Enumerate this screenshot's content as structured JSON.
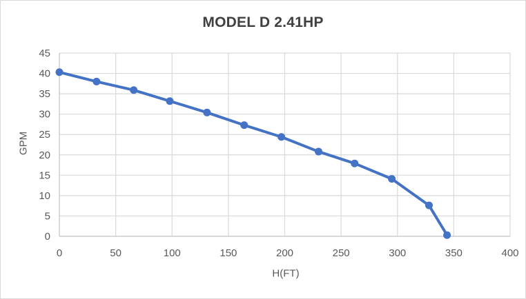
{
  "chart_data": {
    "type": "line",
    "title": "MODEL D 2.41HP",
    "xlabel": "H(FT)",
    "ylabel": "GPM",
    "xlim": [
      0,
      400
    ],
    "ylim": [
      0,
      45
    ],
    "xticks": [
      0,
      50,
      100,
      150,
      200,
      250,
      300,
      350,
      400
    ],
    "yticks": [
      0,
      5,
      10,
      15,
      20,
      25,
      30,
      35,
      40,
      45
    ],
    "grid": true,
    "legend_position": "none",
    "series": [
      {
        "name": "MODEL D 2.41HP",
        "x": [
          0,
          33,
          66,
          98,
          131,
          164,
          197,
          230,
          262,
          295,
          328,
          344
        ],
        "y": [
          40.3,
          38.0,
          35.9,
          33.2,
          30.4,
          27.3,
          24.4,
          20.8,
          17.9,
          14.1,
          7.6,
          0.3
        ],
        "marker": "circle"
      }
    ],
    "colors": {
      "line": "#4472C4",
      "marker": "#4472C4",
      "gridline": "#D9D9D9",
      "axis_line": "#C8C8C8",
      "tick_text": "#595959",
      "title_text": "#404040",
      "background": "#FFFFFF",
      "border": "#D9D9D9"
    }
  }
}
